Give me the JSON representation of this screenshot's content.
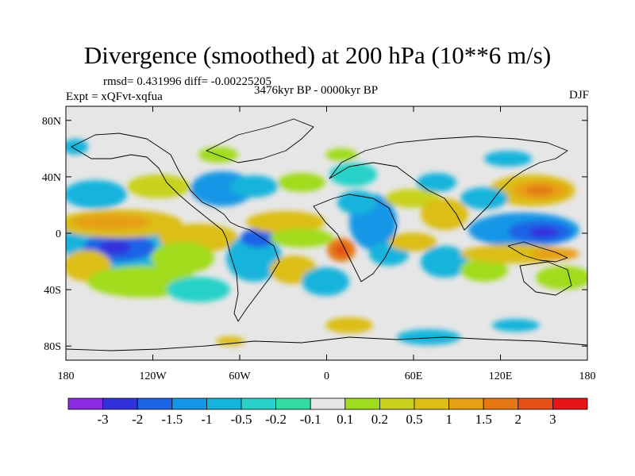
{
  "title": "Divergence (smoothed) at 200 hPa (10**6 m/s)",
  "rmsd_line": "rmsd= 0.431996 diff= -0.00225205",
  "experiment_line": "Expt = xQFvt-xqfua",
  "period_line": "3476kyr BP - 0000kyr BP",
  "season": "DJF",
  "map": {
    "lon_range": [
      -180,
      180
    ],
    "lat_range": [
      -90,
      90
    ],
    "x_ticks": [
      {
        "lon": -180,
        "label": "180"
      },
      {
        "lon": -120,
        "label": "120W"
      },
      {
        "lon": -60,
        "label": "60W"
      },
      {
        "lon": 0,
        "label": "0"
      },
      {
        "lon": 60,
        "label": "60E"
      },
      {
        "lon": 120,
        "label": "120E"
      },
      {
        "lon": 180,
        "label": "180"
      }
    ],
    "y_ticks": [
      {
        "lat": 80,
        "label": "80N"
      },
      {
        "lat": 40,
        "label": "40N"
      },
      {
        "lat": 0,
        "label": "0"
      },
      {
        "lat": -40,
        "label": "40S"
      },
      {
        "lat": -80,
        "label": "80S"
      }
    ]
  },
  "colorbar": {
    "colors": [
      "#8a2be2",
      "#3232dc",
      "#1e64e6",
      "#1496e6",
      "#14b4dc",
      "#28d2c8",
      "#32dca0",
      "#e6e6e6",
      "#a0dc1e",
      "#c8d21e",
      "#dcbe14",
      "#e6a014",
      "#e67814",
      "#e65014",
      "#e61414"
    ],
    "labels": [
      "-3",
      "-2",
      "-1.5",
      "-1",
      "-0.5",
      "-0.2",
      "-0.1",
      "0.1",
      "0.2",
      "0.5",
      "1",
      "1.5",
      "2",
      "3"
    ]
  },
  "colors": {
    "ocean_land_bg": "#e6e6e6",
    "strong_neg": "#3232dc",
    "neg": "#1496e6",
    "weak_neg": "#28d2c8",
    "weak_pos": "#a0dc1e",
    "pos": "#dcbe14",
    "strong_pos": "#e67814",
    "very_strong_pos": "#e65014"
  }
}
